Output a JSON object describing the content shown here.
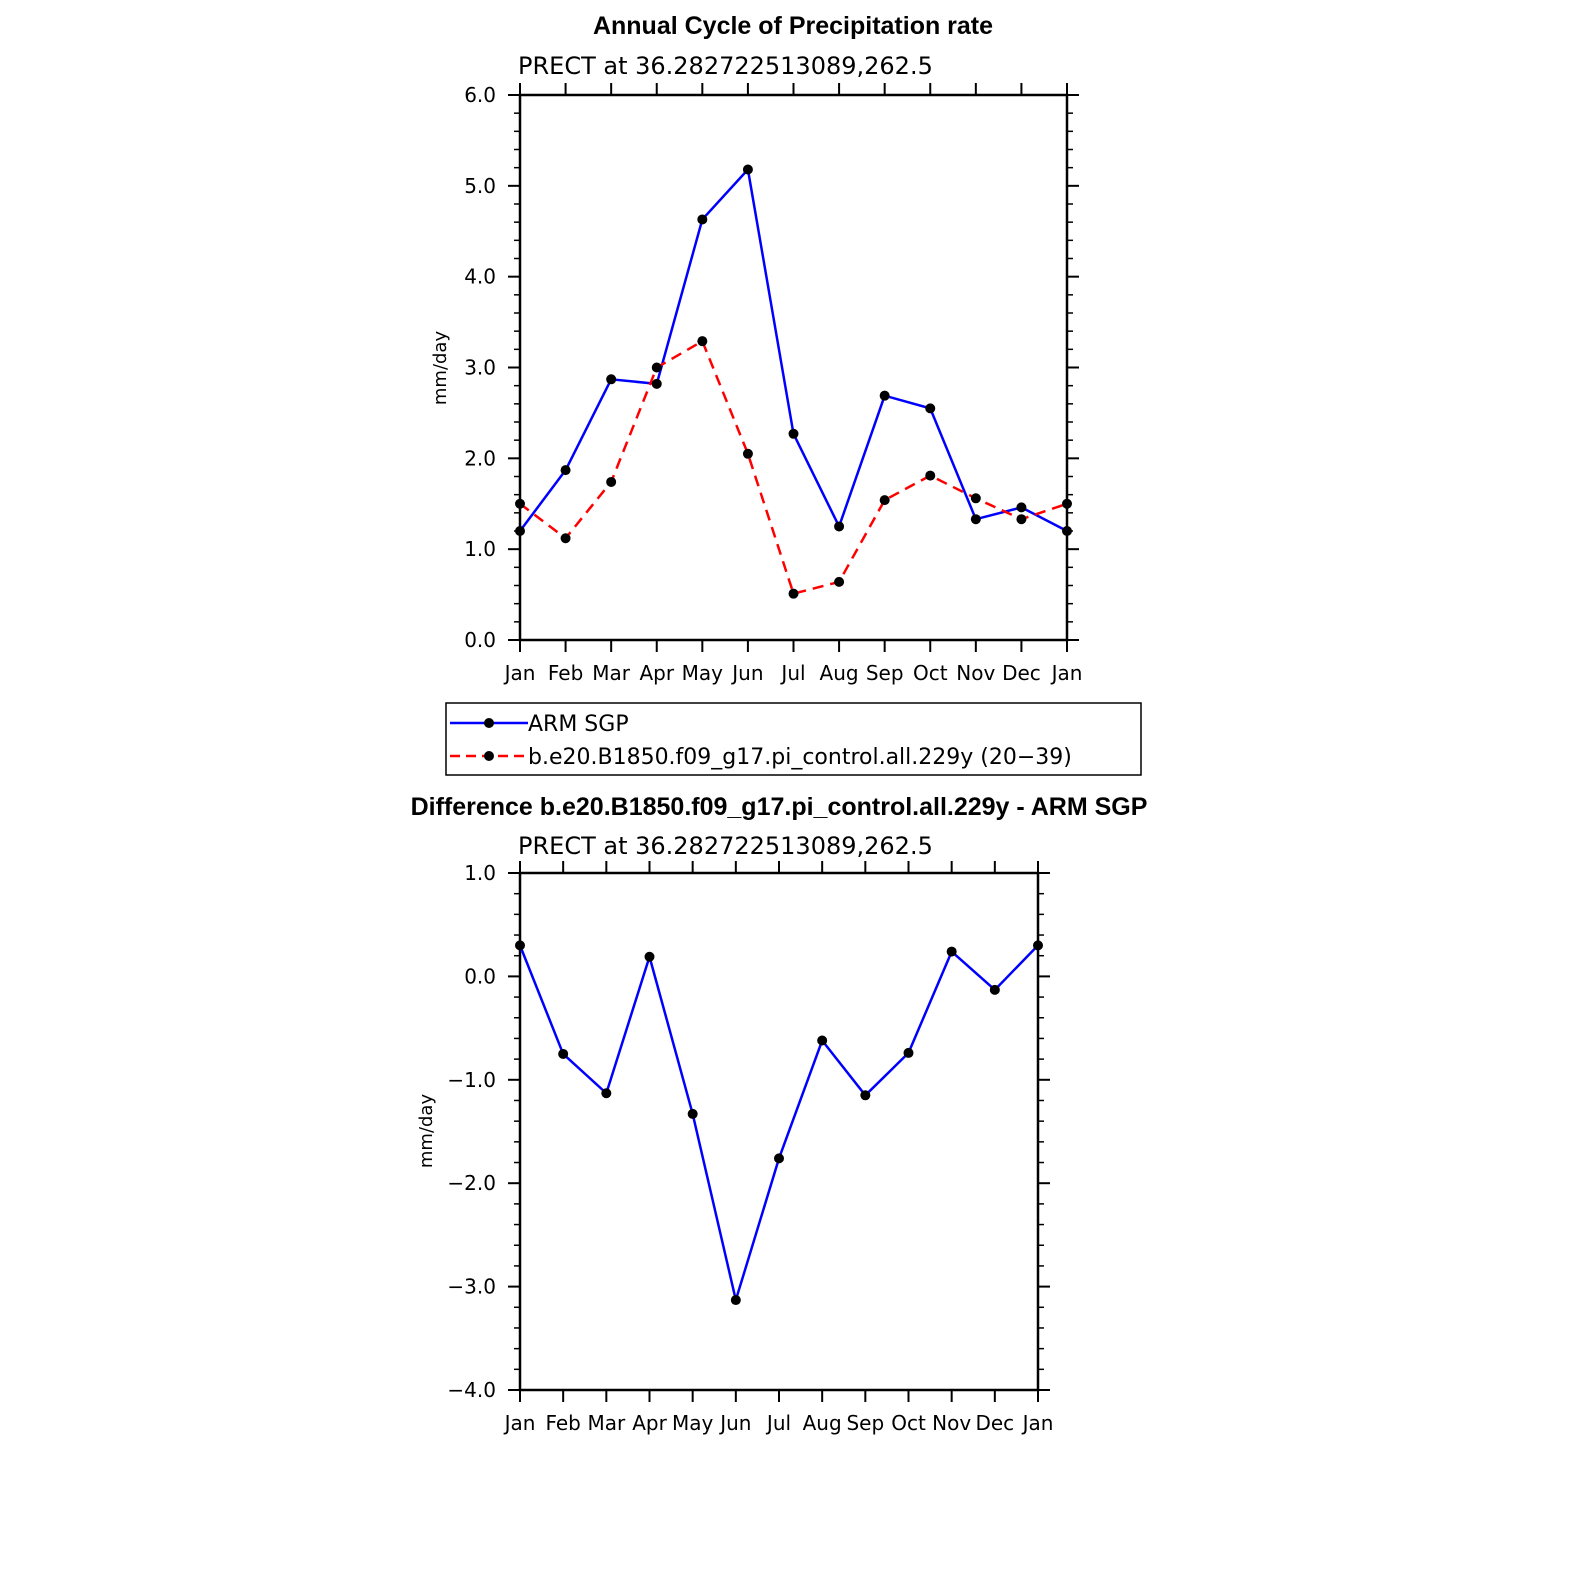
{
  "chart_data": [
    {
      "type": "line",
      "title": "Annual Cycle of Precipitation rate",
      "subtitle": "PRECT at 36.282722513089,262.5",
      "xlabel": "",
      "ylabel": "mm/day",
      "categories": [
        "Jan",
        "Feb",
        "Mar",
        "Apr",
        "May",
        "Jun",
        "Jul",
        "Aug",
        "Sep",
        "Oct",
        "Nov",
        "Dec",
        "Jan"
      ],
      "ylim": [
        0.0,
        6.0
      ],
      "yticks": [
        0.0,
        1.0,
        2.0,
        3.0,
        4.0,
        5.0,
        6.0
      ],
      "ytick_labels": [
        "0.0",
        "1.0",
        "2.0",
        "3.0",
        "4.0",
        "5.0",
        "6.0"
      ],
      "series": [
        {
          "name": "ARM SGP",
          "color": "#0000ff",
          "style": "solid",
          "values": [
            1.2,
            1.87,
            2.87,
            2.82,
            4.63,
            5.18,
            2.27,
            1.25,
            2.69,
            2.55,
            1.33,
            1.46,
            1.2
          ]
        },
        {
          "name": "b.e20.B1850.f09_g17.pi_control.all.229y (20−39)",
          "color": "#ff0000",
          "style": "dashed",
          "values": [
            1.5,
            1.12,
            1.74,
            3.0,
            3.29,
            2.05,
            0.51,
            0.64,
            1.54,
            1.81,
            1.56,
            1.33,
            1.5
          ]
        }
      ],
      "legend": "below"
    },
    {
      "type": "line",
      "title": "Difference b.e20.B1850.f09_g17.pi_control.all.229y - ARM SGP",
      "subtitle": "PRECT at 36.282722513089,262.5",
      "xlabel": "",
      "ylabel": "mm/day",
      "categories": [
        "Jan",
        "Feb",
        "Mar",
        "Apr",
        "May",
        "Jun",
        "Jul",
        "Aug",
        "Sep",
        "Oct",
        "Nov",
        "Dec",
        "Jan"
      ],
      "ylim": [
        -4.0,
        1.0
      ],
      "yticks": [
        -4.0,
        -3.0,
        -2.0,
        -1.0,
        0.0,
        1.0
      ],
      "ytick_labels": [
        "−4.0",
        "−3.0",
        "−2.0",
        "−1.0",
        "0.0",
        "1.0"
      ],
      "series": [
        {
          "name": "Difference",
          "color": "#0000ff",
          "style": "solid",
          "values": [
            0.3,
            -0.75,
            -1.13,
            0.19,
            -1.33,
            -3.13,
            -1.76,
            -0.62,
            -1.15,
            -0.74,
            0.24,
            -0.13,
            0.3
          ]
        }
      ]
    }
  ]
}
